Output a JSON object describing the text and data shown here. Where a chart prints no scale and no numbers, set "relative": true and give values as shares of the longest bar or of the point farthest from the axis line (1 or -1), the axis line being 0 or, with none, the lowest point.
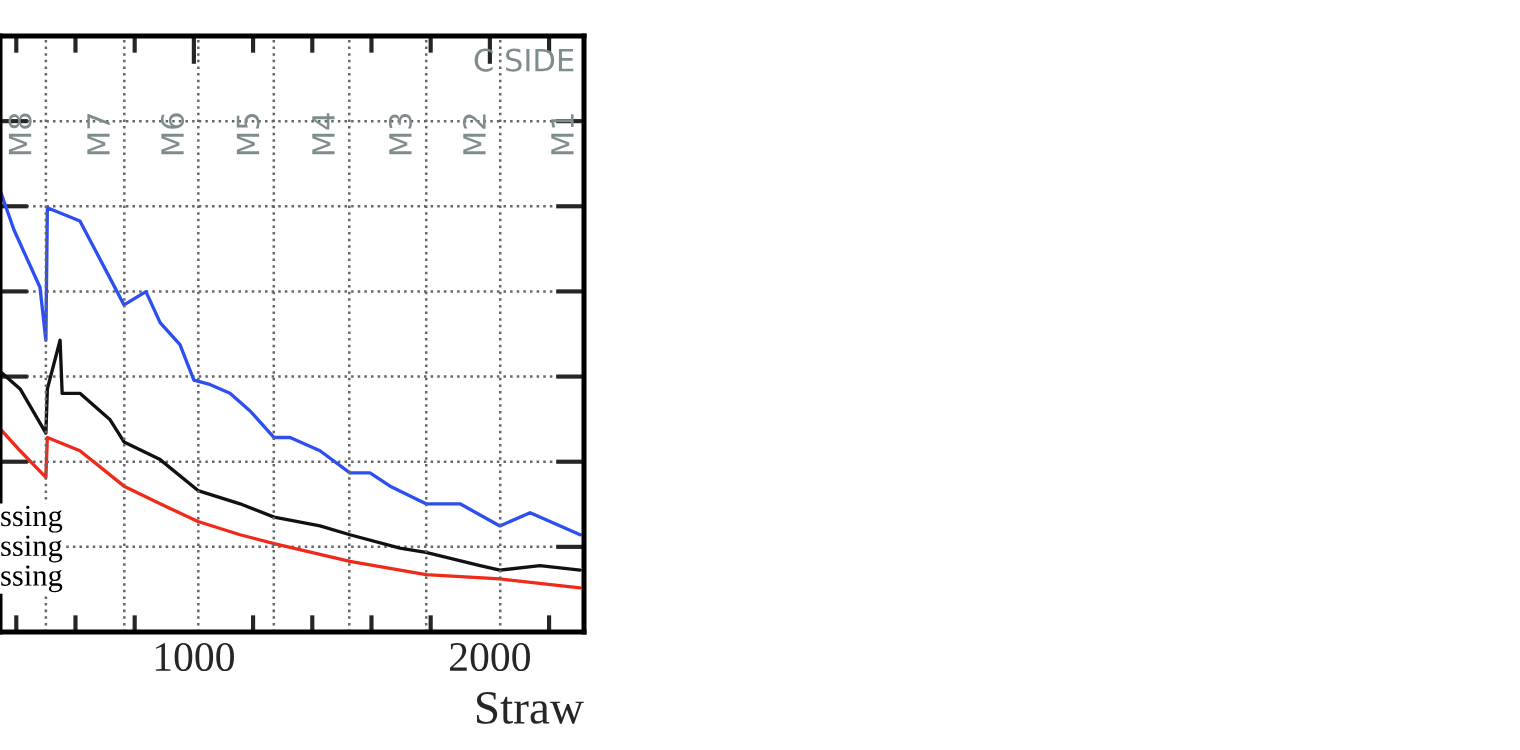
{
  "chart_data": {
    "type": "line",
    "relative": true,
    "xlabel": "Straw",
    "xlim": [
      345,
      2318
    ],
    "xticks": [
      {
        "value": 400,
        "label": null
      },
      {
        "value": 600,
        "label": null
      },
      {
        "value": 800,
        "label": null
      },
      1000,
      {
        "value": 1200,
        "label": null
      },
      {
        "value": 1400,
        "label": null
      },
      {
        "value": 1600,
        "label": null
      },
      {
        "value": 1800,
        "label": null
      },
      2000,
      {
        "value": 2200,
        "label": null
      }
    ],
    "grid": "y",
    "tick_labels": "x",
    "series": [
      {
        "color": "#2e4ff0",
        "x": [
          345,
          392,
          480,
          500,
          505,
          615,
          717,
          764,
          838,
          886,
          953,
          1000,
          1054,
          1122,
          1190,
          1271,
          1325,
          1426,
          1527,
          1595,
          1663,
          1784,
          1899,
          2034,
          2136,
          2305
        ],
        "values": [
          1.0,
          0.91,
          0.78,
          0.66,
          0.96,
          0.93,
          0.8,
          0.74,
          0.77,
          0.7,
          0.65,
          0.57,
          0.56,
          0.54,
          0.5,
          0.44,
          0.44,
          0.41,
          0.36,
          0.36,
          0.33,
          0.29,
          0.29,
          0.24,
          0.27,
          0.22
        ]
      },
      {
        "color": "#111111",
        "x": [
          345,
          413,
          500,
          505,
          548,
          555,
          615,
          717,
          764,
          886,
          1014,
          1156,
          1271,
          1426,
          1527,
          1696,
          1784,
          1967,
          2034,
          2169,
          2305
        ],
        "values": [
          0.59,
          0.55,
          0.45,
          0.55,
          0.66,
          0.54,
          0.54,
          0.48,
          0.43,
          0.39,
          0.32,
          0.29,
          0.26,
          0.24,
          0.22,
          0.19,
          0.18,
          0.15,
          0.14,
          0.15,
          0.14
        ]
      },
      {
        "color": "#f02a1a",
        "x": [
          345,
          413,
          500,
          505,
          615,
          764,
          886,
          1014,
          1156,
          1271,
          1527,
          1784,
          2034,
          2305
        ],
        "values": [
          0.46,
          0.41,
          0.35,
          0.44,
          0.41,
          0.33,
          0.29,
          0.25,
          0.22,
          0.2,
          0.16,
          0.13,
          0.12,
          0.1
        ]
      }
    ],
    "ref_lines": [
      {
        "axis": "x",
        "value": 500,
        "label": "M8",
        "line_style": "dotted"
      },
      {
        "axis": "x",
        "value": 765,
        "label": "M7",
        "line_style": "dotted"
      },
      {
        "axis": "x",
        "value": 1015,
        "label": "M6",
        "line_style": "dotted"
      },
      {
        "axis": "x",
        "value": 1270,
        "label": "M5",
        "line_style": "dotted"
      },
      {
        "axis": "x",
        "value": 1525,
        "label": "M4",
        "line_style": "dotted"
      },
      {
        "axis": "x",
        "value": 1785,
        "label": "M3",
        "line_style": "dotted"
      },
      {
        "axis": "x",
        "value": 2035,
        "label": "M2",
        "line_style": "dotted"
      }
    ],
    "annotations": [
      "C SIDE",
      "M1",
      "ssing",
      "ssing",
      "ssing"
    ]
  }
}
